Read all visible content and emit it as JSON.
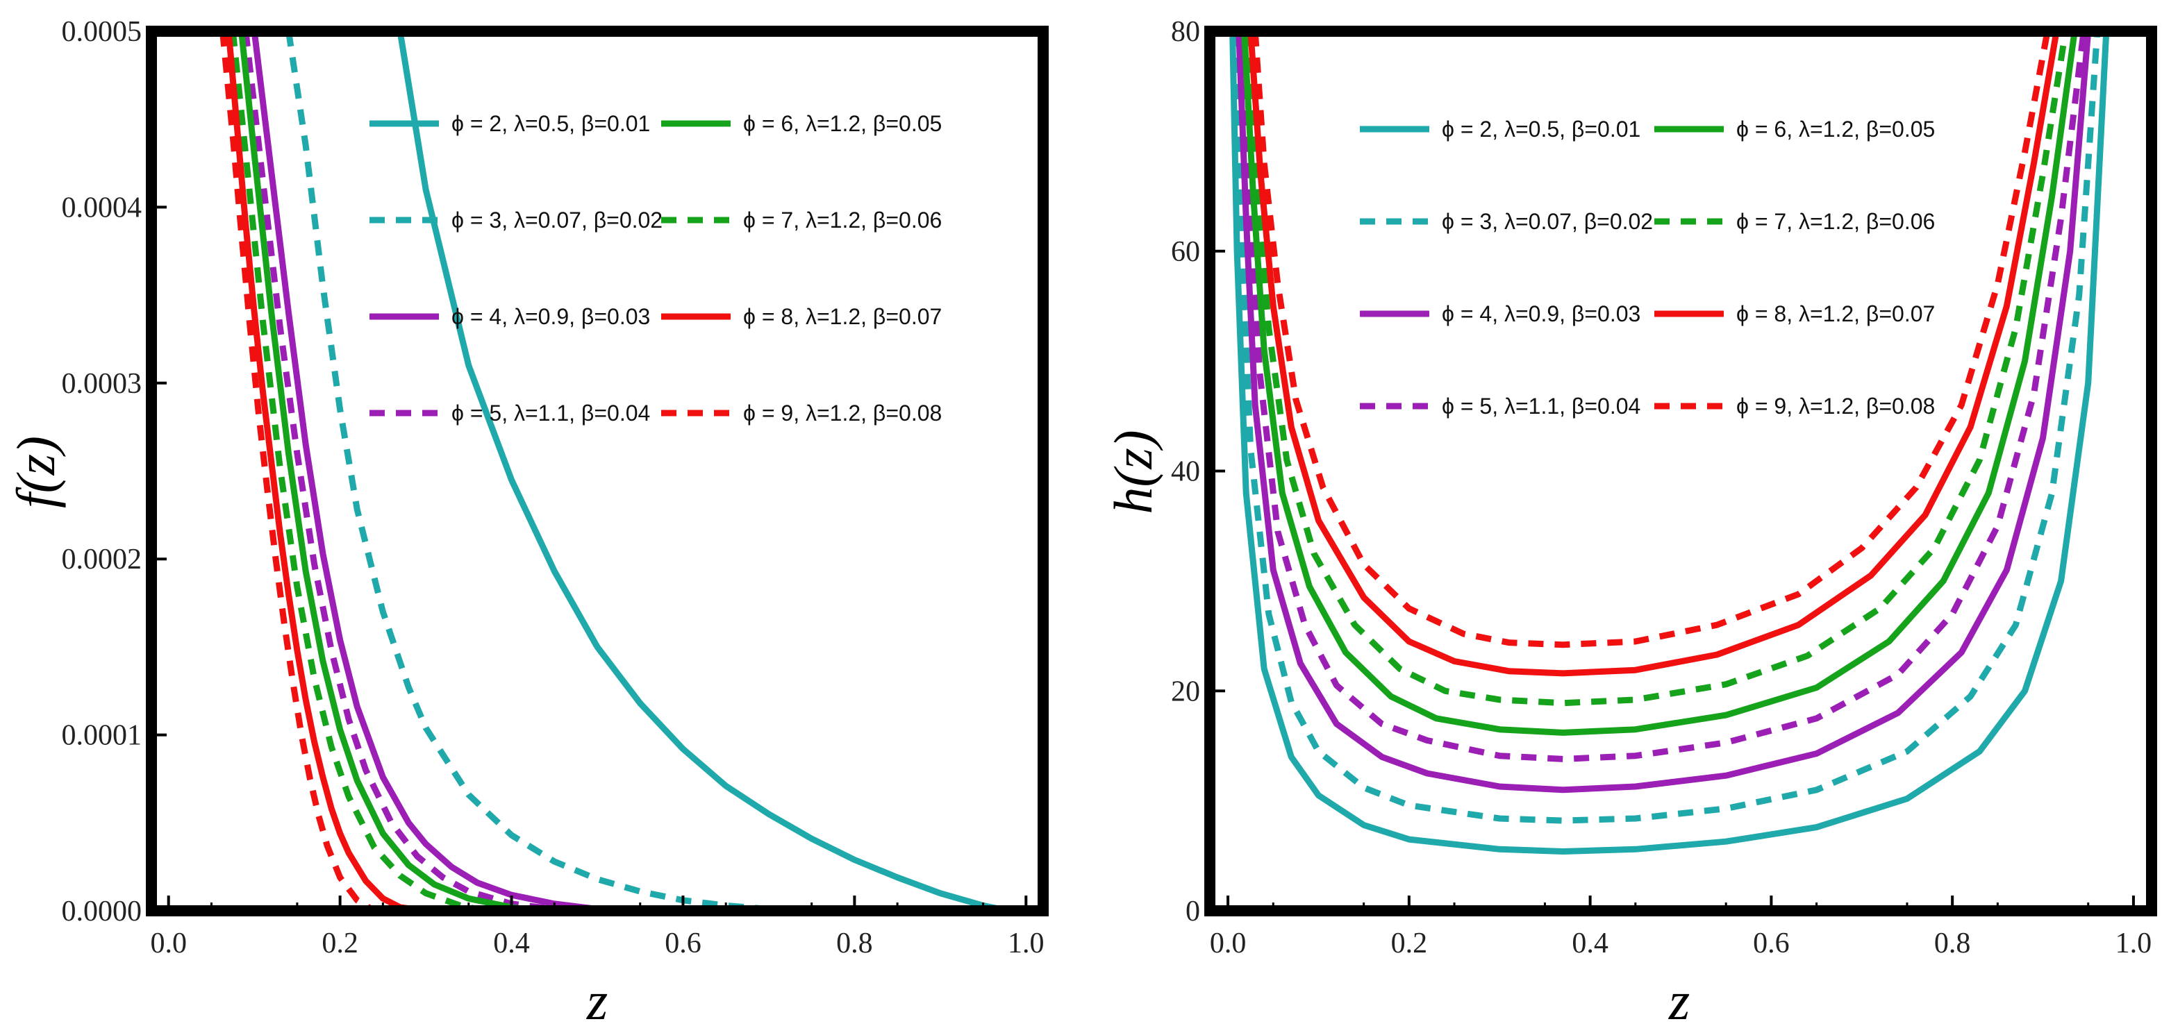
{
  "chart_data": [
    {
      "type": "line",
      "title": "",
      "xlabel": "z",
      "ylabel": "f(z)",
      "xlim": [
        -0.02,
        1.02
      ],
      "ylim": [
        0,
        0.0005
      ],
      "x_ticks": [
        0.0,
        0.2,
        0.4,
        0.6,
        0.8,
        1.0
      ],
      "x_tick_labels": [
        "0.0",
        "0.2",
        "0.4",
        "0.6",
        "0.8",
        "1.0"
      ],
      "y_ticks": [
        0,
        0.0001,
        0.0002,
        0.0003,
        0.0004,
        0.0005
      ],
      "y_tick_labels": [
        "0.0000",
        "0.0001",
        "0.0002",
        "0.0003",
        "0.0004",
        "0.0005"
      ],
      "legend_location": "top-right",
      "series": [
        {
          "name": "ϕ = 2, λ=0.5, β=0.01",
          "color": "#1fa9aa",
          "dash": "solid",
          "x": [
            0.27,
            0.3,
            0.35,
            0.4,
            0.45,
            0.5,
            0.55,
            0.6,
            0.65,
            0.7,
            0.75,
            0.8,
            0.85,
            0.9,
            0.95,
            0.98
          ],
          "y": [
            0.0005,
            0.00041,
            0.00031,
            0.000245,
            0.000193,
            0.00015,
            0.000118,
            9.2e-05,
            7.1e-05,
            5.5e-05,
            4.1e-05,
            2.9e-05,
            1.9e-05,
            1e-05,
            3e-06,
            0
          ]
        },
        {
          "name": "ϕ = 3, λ=0.07, β=0.02",
          "color": "#1fa9aa",
          "dash": "dashed",
          "x": [
            0.14,
            0.16,
            0.18,
            0.2,
            0.22,
            0.25,
            0.28,
            0.3,
            0.35,
            0.4,
            0.45,
            0.5,
            0.55,
            0.6,
            0.65,
            0.7,
            0.72
          ],
          "y": [
            0.0005,
            0.000435,
            0.000355,
            0.000285,
            0.000228,
            0.00017,
            0.000127,
            0.000104,
            6.6e-05,
            4.3e-05,
            2.8e-05,
            1.8e-05,
            1.1e-05,
            6e-06,
            3e-06,
            1e-06,
            0
          ]
        },
        {
          "name": "ϕ = 4, λ=0.9, β=0.03",
          "color": "#9b1fb5",
          "dash": "solid",
          "x": [
            0.1,
            0.12,
            0.14,
            0.16,
            0.18,
            0.2,
            0.22,
            0.25,
            0.28,
            0.3,
            0.33,
            0.36,
            0.4,
            0.45,
            0.5,
            0.55,
            0.58
          ],
          "y": [
            0.0005,
            0.00042,
            0.00034,
            0.000265,
            0.000203,
            0.000154,
            0.000116,
            7.6e-05,
            5e-05,
            3.8e-05,
            2.5e-05,
            1.6e-05,
            9e-06,
            4e-06,
            1e-06,
            0.0,
            0
          ]
        },
        {
          "name": "ϕ = 5, λ=1.1, β=0.04",
          "color": "#9b1fb5",
          "dash": "dashed",
          "x": [
            0.09,
            0.11,
            0.13,
            0.15,
            0.17,
            0.19,
            0.21,
            0.23,
            0.26,
            0.29,
            0.32,
            0.35,
            0.4,
            0.45,
            0.48
          ],
          "y": [
            0.0005,
            0.000415,
            0.000332,
            0.00026,
            0.000197,
            0.000148,
            0.000109,
            8e-05,
            5e-05,
            3.1e-05,
            1.9e-05,
            1.1e-05,
            4e-06,
            1e-06,
            0
          ]
        },
        {
          "name": "ϕ = 6, λ=1.2, β=0.05",
          "color": "#16a31c",
          "dash": "solid",
          "x": [
            0.085,
            0.1,
            0.12,
            0.14,
            0.16,
            0.18,
            0.2,
            0.22,
            0.25,
            0.28,
            0.31,
            0.35,
            0.4,
            0.43
          ],
          "y": [
            0.0005,
            0.00043,
            0.00034,
            0.00026,
            0.000193,
            0.000142,
            0.000103,
            7.4e-05,
            4.4e-05,
            2.6e-05,
            1.5e-05,
            7e-06,
            2e-06,
            0
          ]
        },
        {
          "name": "ϕ = 7, λ=1.2, β=0.06",
          "color": "#16a31c",
          "dash": "dashed",
          "x": [
            0.075,
            0.09,
            0.11,
            0.13,
            0.15,
            0.17,
            0.19,
            0.21,
            0.24,
            0.27,
            0.3,
            0.34,
            0.37
          ],
          "y": [
            0.0005,
            0.00043,
            0.000335,
            0.000252,
            0.000184,
            0.000132,
            9.3e-05,
            6.5e-05,
            3.6e-05,
            2e-05,
            1e-05,
            3e-06,
            0
          ]
        },
        {
          "name": "ϕ = 8, λ=1.2, β=0.07",
          "color": "#f01010",
          "dash": "solid",
          "x": [
            0.07,
            0.08,
            0.09,
            0.1,
            0.11,
            0.12,
            0.13,
            0.14,
            0.15,
            0.16,
            0.17,
            0.18,
            0.19,
            0.2,
            0.21,
            0.23,
            0.25,
            0.27,
            0.3
          ],
          "y": [
            0.0005,
            0.000445,
            0.00039,
            0.00034,
            0.000295,
            0.000255,
            0.000215,
            0.00018,
            0.000148,
            0.00012,
            9.6e-05,
            7.6e-05,
            5.8e-05,
            4.4e-05,
            3.3e-05,
            1.7e-05,
            7e-06,
            2e-06,
            0
          ]
        },
        {
          "name": "ϕ = 9, λ=1.2, β=0.08",
          "color": "#f01010",
          "dash": "dashed",
          "x": [
            0.063,
            0.075,
            0.085,
            0.095,
            0.105,
            0.115,
            0.125,
            0.135,
            0.145,
            0.155,
            0.165,
            0.175,
            0.185,
            0.2,
            0.22,
            0.24
          ],
          "y": [
            0.0005,
            0.00044,
            0.000385,
            0.000332,
            0.000283,
            0.00024,
            0.0002,
            0.000163,
            0.00013,
            0.0001,
            7.5e-05,
            5.4e-05,
            3.7e-05,
            1.9e-05,
            6e-06,
            0
          ]
        }
      ]
    },
    {
      "type": "line",
      "title": "",
      "xlabel": "z",
      "ylabel": "h(z)",
      "xlim": [
        -0.02,
        1.02
      ],
      "ylim": [
        0,
        80
      ],
      "x_ticks": [
        0.0,
        0.2,
        0.4,
        0.6,
        0.8,
        1.0
      ],
      "x_tick_labels": [
        "0.0",
        "0.2",
        "0.4",
        "0.6",
        "0.8",
        "1.0"
      ],
      "y_ticks": [
        0,
        20,
        40,
        60,
        80
      ],
      "y_tick_labels": [
        "0",
        "20",
        "40",
        "60",
        "80"
      ],
      "legend_location": "top-center",
      "series": [
        {
          "name": "ϕ = 2, λ=0.5, β=0.01",
          "color": "#1fa9aa",
          "dash": "solid",
          "x": [
            0.005,
            0.01,
            0.02,
            0.04,
            0.07,
            0.1,
            0.15,
            0.2,
            0.3,
            0.37,
            0.45,
            0.55,
            0.65,
            0.75,
            0.83,
            0.88,
            0.92,
            0.95,
            0.97
          ],
          "y": [
            80,
            60,
            38,
            22,
            14,
            10.5,
            7.8,
            6.5,
            5.6,
            5.4,
            5.6,
            6.3,
            7.6,
            10.2,
            14.5,
            20,
            30,
            48,
            80
          ]
        },
        {
          "name": "ϕ = 3, λ=0.07, β=0.02",
          "color": "#1fa9aa",
          "dash": "dashed",
          "x": [
            0.008,
            0.015,
            0.025,
            0.045,
            0.07,
            0.1,
            0.15,
            0.2,
            0.3,
            0.37,
            0.45,
            0.55,
            0.65,
            0.75,
            0.82,
            0.87,
            0.91,
            0.94,
            0.96
          ],
          "y": [
            80,
            61,
            42,
            27,
            19,
            14.5,
            11.2,
            9.6,
            8.4,
            8.2,
            8.4,
            9.3,
            11,
            14.5,
            19.5,
            26,
            38,
            56,
            80
          ]
        },
        {
          "name": "ϕ = 4, λ=0.9, β=0.03",
          "color": "#9b1fb5",
          "dash": "solid",
          "x": [
            0.012,
            0.02,
            0.03,
            0.05,
            0.08,
            0.12,
            0.17,
            0.22,
            0.3,
            0.37,
            0.45,
            0.55,
            0.65,
            0.74,
            0.81,
            0.86,
            0.9,
            0.93,
            0.95
          ],
          "y": [
            80,
            63,
            46,
            31,
            22.5,
            17,
            14,
            12.5,
            11.3,
            11,
            11.3,
            12.3,
            14.3,
            18,
            23.5,
            31,
            43,
            60,
            80
          ]
        },
        {
          "name": "ϕ = 5, λ=1.1, β=0.04",
          "color": "#9b1fb5",
          "dash": "dashed",
          "x": [
            0.015,
            0.025,
            0.035,
            0.055,
            0.085,
            0.12,
            0.17,
            0.22,
            0.3,
            0.37,
            0.45,
            0.55,
            0.65,
            0.74,
            0.8,
            0.85,
            0.89,
            0.92,
            0.945
          ],
          "y": [
            80,
            64,
            49,
            34.5,
            26,
            20.5,
            17,
            15.5,
            14.1,
            13.8,
            14.1,
            15.3,
            17.5,
            21.5,
            27,
            35,
            47,
            63,
            80
          ]
        },
        {
          "name": "ϕ = 6, λ=1.2, β=0.05",
          "color": "#16a31c",
          "dash": "solid",
          "x": [
            0.018,
            0.028,
            0.04,
            0.06,
            0.09,
            0.13,
            0.18,
            0.23,
            0.3,
            0.37,
            0.45,
            0.55,
            0.65,
            0.73,
            0.79,
            0.84,
            0.88,
            0.91,
            0.935
          ],
          "y": [
            80,
            65,
            51,
            38,
            29.5,
            23.5,
            19.5,
            17.5,
            16.5,
            16.2,
            16.5,
            17.8,
            20.3,
            24.5,
            30,
            38,
            50,
            65,
            80
          ]
        },
        {
          "name": "ϕ = 7, λ=1.2, β=0.06",
          "color": "#16a31c",
          "dash": "dashed",
          "x": [
            0.021,
            0.032,
            0.045,
            0.065,
            0.095,
            0.14,
            0.19,
            0.24,
            0.3,
            0.37,
            0.45,
            0.55,
            0.64,
            0.72,
            0.78,
            0.83,
            0.87,
            0.9,
            0.925
          ],
          "y": [
            80,
            66,
            53,
            41,
            32.5,
            26,
            22,
            20,
            19.2,
            18.9,
            19.2,
            20.6,
            23.2,
            27.5,
            33,
            41,
            53,
            67,
            80
          ]
        },
        {
          "name": "ϕ = 8, λ=1.2, β=0.07",
          "color": "#f01010",
          "dash": "solid",
          "x": [
            0.025,
            0.036,
            0.05,
            0.07,
            0.1,
            0.15,
            0.2,
            0.25,
            0.31,
            0.37,
            0.45,
            0.54,
            0.63,
            0.71,
            0.77,
            0.82,
            0.86,
            0.89,
            0.915
          ],
          "y": [
            80,
            67,
            55,
            44,
            35.5,
            28.5,
            24.5,
            22.7,
            21.8,
            21.6,
            21.9,
            23.3,
            26,
            30.5,
            36,
            44,
            55,
            68,
            80
          ]
        },
        {
          "name": "ϕ = 9, λ=1.2, β=0.08",
          "color": "#f01010",
          "dash": "dashed",
          "x": [
            0.03,
            0.04,
            0.055,
            0.075,
            0.105,
            0.15,
            0.2,
            0.26,
            0.31,
            0.37,
            0.45,
            0.54,
            0.63,
            0.7,
            0.76,
            0.81,
            0.85,
            0.88,
            0.905
          ],
          "y": [
            80,
            68,
            57,
            46.5,
            38.5,
            31.5,
            27.5,
            25.2,
            24.4,
            24.2,
            24.5,
            26,
            28.8,
            33,
            38.5,
            46,
            57,
            69,
            80
          ]
        }
      ]
    }
  ]
}
